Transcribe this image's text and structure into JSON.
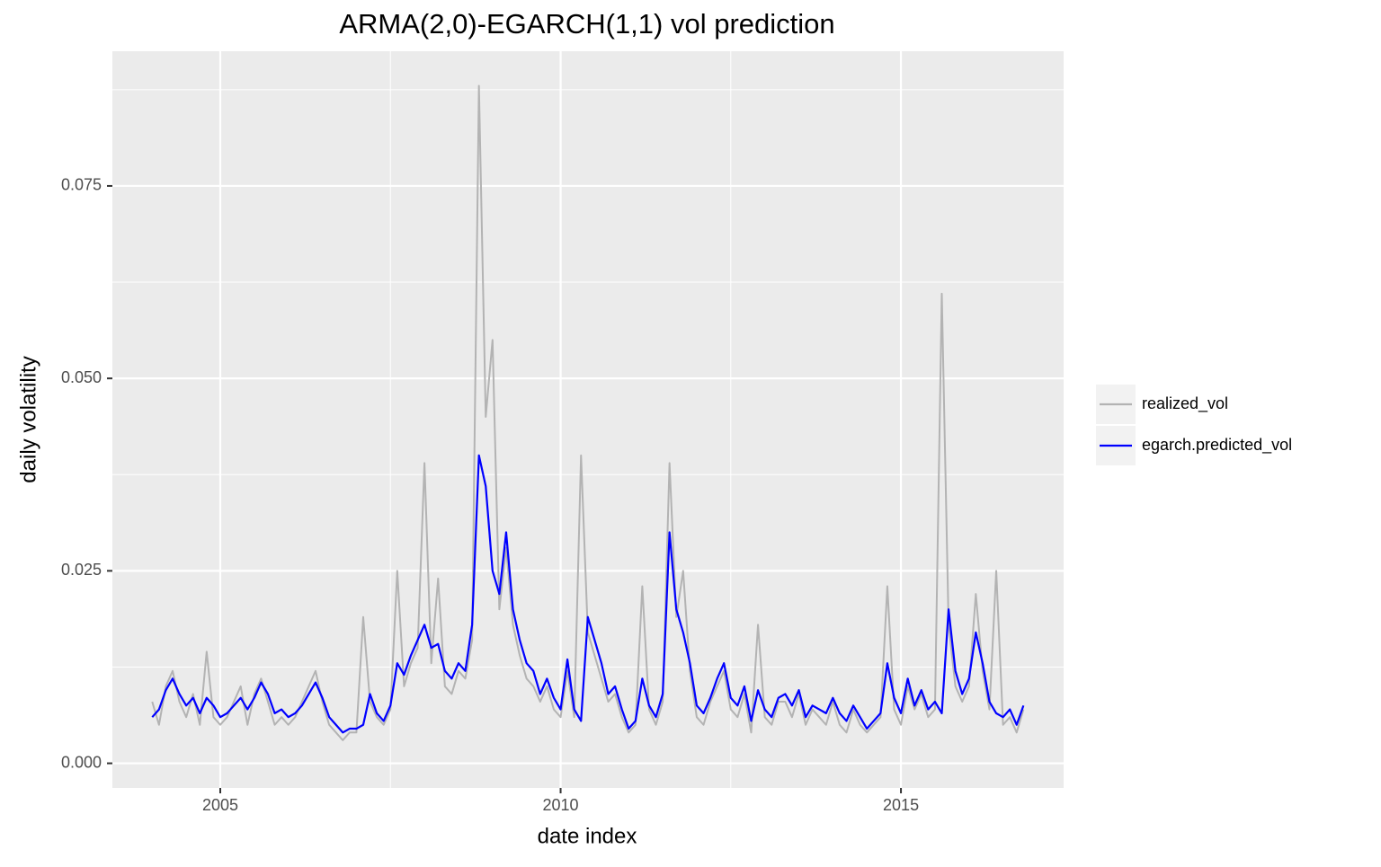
{
  "chart_data": {
    "type": "line",
    "title": "ARMA(2,0)-EGARCH(1,1) vol prediction",
    "x_label": "date index",
    "y_label": "daily volatility",
    "x": [
      2004.0,
      2004.1,
      2004.2,
      2004.3,
      2004.4,
      2004.5,
      2004.6,
      2004.7,
      2004.8,
      2004.9,
      2005.0,
      2005.1,
      2005.2,
      2005.3,
      2005.4,
      2005.5,
      2005.6,
      2005.7,
      2005.8,
      2005.9,
      2006.0,
      2006.1,
      2006.2,
      2006.3,
      2006.4,
      2006.5,
      2006.6,
      2006.7,
      2006.8,
      2006.9,
      2007.0,
      2007.1,
      2007.2,
      2007.3,
      2007.4,
      2007.5,
      2007.6,
      2007.7,
      2007.8,
      2007.9,
      2008.0,
      2008.1,
      2008.2,
      2008.3,
      2008.4,
      2008.5,
      2008.6,
      2008.7,
      2008.8,
      2008.9,
      2009.0,
      2009.1,
      2009.2,
      2009.3,
      2009.4,
      2009.5,
      2009.6,
      2009.7,
      2009.8,
      2009.9,
      2010.0,
      2010.1,
      2010.2,
      2010.3,
      2010.4,
      2010.5,
      2010.6,
      2010.7,
      2010.8,
      2010.9,
      2011.0,
      2011.1,
      2011.2,
      2011.3,
      2011.4,
      2011.5,
      2011.6,
      2011.7,
      2011.8,
      2011.9,
      2012.0,
      2012.1,
      2012.2,
      2012.3,
      2012.4,
      2012.5,
      2012.6,
      2012.7,
      2012.8,
      2012.9,
      2013.0,
      2013.1,
      2013.2,
      2013.3,
      2013.4,
      2013.5,
      2013.6,
      2013.7,
      2013.8,
      2013.9,
      2014.0,
      2014.1,
      2014.2,
      2014.3,
      2014.4,
      2014.5,
      2014.6,
      2014.7,
      2014.8,
      2014.9,
      2015.0,
      2015.1,
      2015.2,
      2015.3,
      2015.4,
      2015.5,
      2015.6,
      2015.7,
      2015.8,
      2015.9,
      2016.0,
      2016.1,
      2016.2,
      2016.3,
      2016.4,
      2016.5,
      2016.6,
      2016.7,
      2016.8
    ],
    "series": [
      {
        "name": "realized_vol",
        "color": "#b3b3b3",
        "values": [
          0.008,
          0.005,
          0.01,
          0.012,
          0.008,
          0.006,
          0.009,
          0.005,
          0.0145,
          0.006,
          0.005,
          0.006,
          0.008,
          0.01,
          0.005,
          0.009,
          0.011,
          0.008,
          0.005,
          0.006,
          0.005,
          0.006,
          0.008,
          0.01,
          0.012,
          0.008,
          0.005,
          0.004,
          0.003,
          0.004,
          0.004,
          0.019,
          0.008,
          0.006,
          0.005,
          0.007,
          0.025,
          0.01,
          0.013,
          0.015,
          0.039,
          0.013,
          0.024,
          0.01,
          0.009,
          0.012,
          0.011,
          0.016,
          0.088,
          0.045,
          0.055,
          0.02,
          0.028,
          0.018,
          0.014,
          0.011,
          0.01,
          0.008,
          0.01,
          0.007,
          0.006,
          0.012,
          0.006,
          0.04,
          0.017,
          0.014,
          0.011,
          0.008,
          0.009,
          0.006,
          0.004,
          0.005,
          0.023,
          0.007,
          0.005,
          0.008,
          0.039,
          0.019,
          0.025,
          0.012,
          0.006,
          0.005,
          0.008,
          0.01,
          0.012,
          0.007,
          0.006,
          0.009,
          0.004,
          0.018,
          0.006,
          0.005,
          0.008,
          0.008,
          0.006,
          0.009,
          0.005,
          0.007,
          0.006,
          0.005,
          0.008,
          0.005,
          0.004,
          0.007,
          0.005,
          0.004,
          0.005,
          0.006,
          0.023,
          0.007,
          0.005,
          0.01,
          0.007,
          0.009,
          0.006,
          0.007,
          0.061,
          0.018,
          0.01,
          0.008,
          0.01,
          0.022,
          0.012,
          0.007,
          0.025,
          0.005,
          0.006,
          0.004,
          0.007
        ]
      },
      {
        "name": "egarch.predicted_vol",
        "color": "#0000ff",
        "values": [
          0.006,
          0.007,
          0.0095,
          0.011,
          0.009,
          0.0075,
          0.0085,
          0.0065,
          0.0085,
          0.0075,
          0.006,
          0.0065,
          0.0075,
          0.0085,
          0.007,
          0.0085,
          0.0105,
          0.009,
          0.0065,
          0.007,
          0.006,
          0.0065,
          0.0075,
          0.009,
          0.0105,
          0.0085,
          0.006,
          0.005,
          0.004,
          0.0045,
          0.0045,
          0.005,
          0.009,
          0.0065,
          0.0055,
          0.0075,
          0.013,
          0.0115,
          0.014,
          0.016,
          0.018,
          0.015,
          0.0155,
          0.012,
          0.011,
          0.013,
          0.012,
          0.018,
          0.04,
          0.036,
          0.025,
          0.022,
          0.03,
          0.02,
          0.016,
          0.013,
          0.012,
          0.009,
          0.011,
          0.0085,
          0.007,
          0.0135,
          0.007,
          0.0055,
          0.019,
          0.016,
          0.013,
          0.009,
          0.01,
          0.007,
          0.0045,
          0.0055,
          0.011,
          0.0075,
          0.006,
          0.009,
          0.03,
          0.02,
          0.017,
          0.013,
          0.0075,
          0.0065,
          0.0085,
          0.011,
          0.013,
          0.0085,
          0.0075,
          0.01,
          0.0055,
          0.0095,
          0.007,
          0.006,
          0.0085,
          0.009,
          0.0075,
          0.0095,
          0.006,
          0.0075,
          0.007,
          0.0065,
          0.0085,
          0.0065,
          0.0055,
          0.0075,
          0.006,
          0.0045,
          0.0055,
          0.0065,
          0.013,
          0.0085,
          0.0065,
          0.011,
          0.0075,
          0.0095,
          0.007,
          0.008,
          0.0065,
          0.02,
          0.012,
          0.009,
          0.011,
          0.017,
          0.013,
          0.008,
          0.0065,
          0.006,
          0.007,
          0.005,
          0.0075
        ]
      }
    ],
    "xlim": [
      2003.415,
      2017.39
    ],
    "xticks": [
      2005,
      2010,
      2015
    ],
    "x_minor_ticks": [
      2007.5,
      2012.5
    ],
    "ylim": [
      -0.0032,
      0.0925
    ],
    "yticks": [
      {
        "value": 0,
        "label": "0.000"
      },
      {
        "value": 0.025,
        "label": "0.025"
      },
      {
        "value": 0.05,
        "label": "0.050"
      },
      {
        "value": 0.075,
        "label": "0.075"
      }
    ],
    "y_minor_ticks": [
      0.0125,
      0.0375,
      0.0625,
      0.0875
    ],
    "grid": true,
    "legend": "right"
  }
}
